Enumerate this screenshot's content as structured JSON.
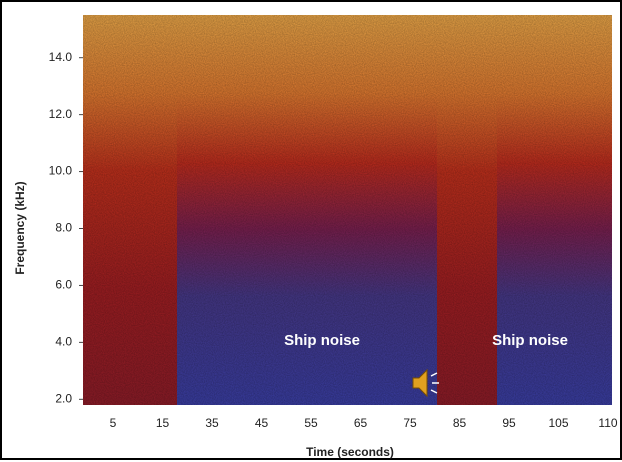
{
  "chart_data": {
    "type": "spectrogram",
    "x_label": "Time (seconds)",
    "y_label": "Frequency (kHz)",
    "x_tick_labels": [
      5,
      15,
      35,
      45,
      55,
      65,
      75,
      85,
      95,
      105,
      110
    ],
    "ylim": [
      1.8,
      15.5
    ],
    "yticks": [
      {
        "value": 2,
        "label": "2.0"
      },
      {
        "value": 4,
        "label": "4.0"
      },
      {
        "value": 6,
        "label": "6.0"
      },
      {
        "value": 8,
        "label": "8.0"
      },
      {
        "value": 10,
        "label": "10.0"
      },
      {
        "value": 12,
        "label": "12.0"
      },
      {
        "value": 14,
        "label": "14.0"
      }
    ],
    "annotations": [
      "Ship noise",
      "Ship noise"
    ]
  }
}
